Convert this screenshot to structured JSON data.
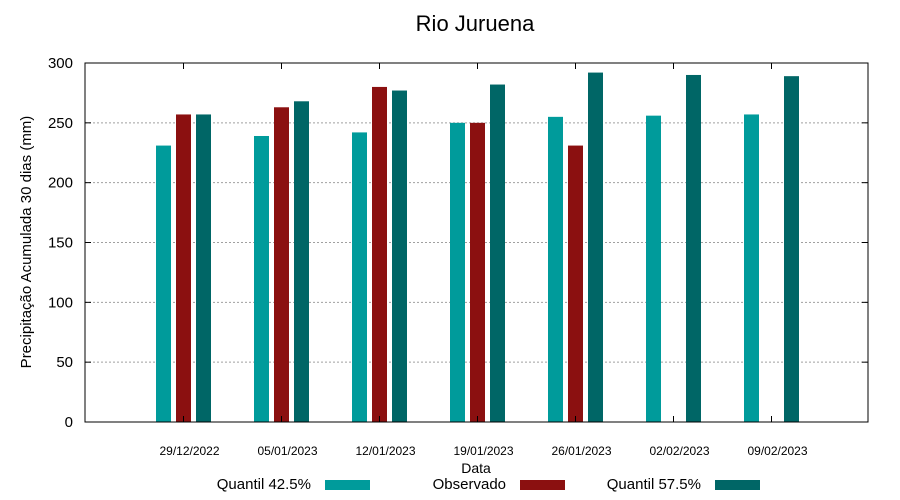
{
  "chart_data": {
    "type": "bar",
    "title": "Rio Juruena",
    "xlabel": "Data",
    "ylabel": "Precipitação Acumulada 30 dias (mm)",
    "ylim": [
      0,
      300
    ],
    "yticks": [
      0,
      50,
      100,
      150,
      200,
      250,
      300
    ],
    "grid": true,
    "legend": "bottom",
    "categories": [
      "29/12/2022",
      "05/01/2023",
      "12/01/2023",
      "19/01/2023",
      "26/01/2023",
      "02/02/2023",
      "09/02/2023"
    ],
    "series": [
      {
        "name": "Quantil 42.5%",
        "color": "#009b9b",
        "values": [
          231,
          239,
          242,
          250,
          255,
          256,
          257
        ]
      },
      {
        "name": "Observado",
        "color": "#8b1010",
        "values": [
          257,
          263,
          280,
          250,
          231,
          null,
          null
        ]
      },
      {
        "name": "Quantil 57.5%",
        "color": "#006666",
        "values": [
          257,
          268,
          277,
          282,
          292,
          290,
          289
        ]
      }
    ]
  }
}
